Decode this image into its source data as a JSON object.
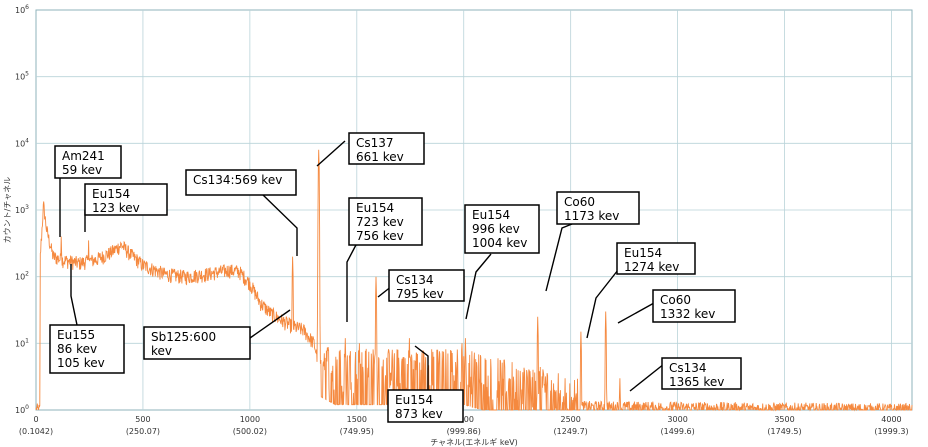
{
  "chart_data": {
    "type": "line",
    "title": "",
    "xlabel": "チャネル(エネルギ keV)",
    "ylabel": "カウント/チャネル",
    "y_scale": "log",
    "ylim": [
      1,
      1000000
    ],
    "xlim": [
      0,
      4096
    ],
    "grid": true,
    "line_color": "#f5893f",
    "x_ticks": [
      {
        "channel": 0,
        "label": "0",
        "energy": "(0.1042)"
      },
      {
        "channel": 500,
        "label": "500",
        "energy": "(250.07)"
      },
      {
        "channel": 1000,
        "label": "1000",
        "energy": "(500.02)"
      },
      {
        "channel": 1500,
        "label": "1500",
        "energy": "(749.95)"
      },
      {
        "channel": 2000,
        "label": "2000",
        "energy": "(999.86)"
      },
      {
        "channel": 2500,
        "label": "2500",
        "energy": "(1249.7)"
      },
      {
        "channel": 3000,
        "label": "3000",
        "energy": "(1499.6)"
      },
      {
        "channel": 3500,
        "label": "3500",
        "energy": "(1749.5)"
      },
      {
        "channel": 4000,
        "label": "4000",
        "energy": "(1999.3)"
      }
    ],
    "y_ticks": [
      {
        "value": 1,
        "base": "10",
        "exp": "0"
      },
      {
        "value": 10,
        "base": "10",
        "exp": "1"
      },
      {
        "value": 100,
        "base": "10",
        "exp": "2"
      },
      {
        "value": 1000,
        "base": "10",
        "exp": "3"
      },
      {
        "value": 10000,
        "base": "10",
        "exp": "4"
      },
      {
        "value": 100000,
        "base": "10",
        "exp": "5"
      },
      {
        "value": 1000000,
        "base": "10",
        "exp": "6"
      }
    ],
    "continuum": [
      [
        20,
        200
      ],
      [
        35,
        1200
      ],
      [
        50,
        500
      ],
      [
        80,
        200
      ],
      [
        120,
        180
      ],
      [
        200,
        160
      ],
      [
        280,
        180
      ],
      [
        350,
        230
      ],
      [
        400,
        300
      ],
      [
        440,
        220
      ],
      [
        500,
        150
      ],
      [
        600,
        110
      ],
      [
        700,
        100
      ],
      [
        800,
        110
      ],
      [
        900,
        125
      ],
      [
        950,
        120
      ],
      [
        1000,
        80
      ],
      [
        1050,
        40
      ],
      [
        1100,
        28
      ],
      [
        1150,
        22
      ],
      [
        1200,
        18
      ],
      [
        1250,
        16
      ],
      [
        1300,
        10
      ],
      [
        1330,
        4
      ],
      [
        1400,
        3
      ],
      [
        1600,
        3
      ],
      [
        1800,
        3
      ],
      [
        2000,
        3
      ],
      [
        2200,
        2
      ],
      [
        2400,
        1.5
      ],
      [
        2500,
        1.1
      ],
      [
        4096,
        1
      ]
    ],
    "peaks": [
      {
        "channel": 118,
        "counts": 400
      },
      {
        "channel": 246,
        "counts": 350
      },
      {
        "channel": 1137,
        "counts": 20
      },
      {
        "channel": 1200,
        "counts": 200
      },
      {
        "channel": 1322,
        "counts": 8000
      },
      {
        "channel": 1446,
        "counts": 12
      },
      {
        "channel": 1512,
        "counts": 10
      },
      {
        "channel": 1590,
        "counts": 100
      },
      {
        "channel": 1746,
        "counts": 12
      },
      {
        "channel": 1992,
        "counts": 10
      },
      {
        "channel": 2008,
        "counts": 12
      },
      {
        "channel": 2346,
        "counts": 25
      },
      {
        "channel": 2548,
        "counts": 15
      },
      {
        "channel": 2664,
        "counts": 30
      },
      {
        "channel": 2730,
        "counts": 3
      }
    ],
    "annotations": [
      {
        "lines": [
          "Am241",
          "59 kev"
        ]
      },
      {
        "lines": [
          "Eu154",
          "123 kev"
        ]
      },
      {
        "lines": [
          "Cs134:569 kev"
        ]
      },
      {
        "lines": [
          "Cs137",
          "661 kev"
        ]
      },
      {
        "lines": [
          "Eu154",
          "723 kev",
          "756 kev"
        ]
      },
      {
        "lines": [
          "Eu154",
          "996 kev",
          "1004 kev"
        ]
      },
      {
        "lines": [
          "Co60",
          "1173 kev"
        ]
      },
      {
        "lines": [
          "Cs134",
          "795 kev"
        ]
      },
      {
        "lines": [
          "Eu154",
          "1274 kev"
        ]
      },
      {
        "lines": [
          "Co60",
          "1332 kev"
        ]
      },
      {
        "lines": [
          "Eu155",
          "86 kev",
          "105 kev"
        ]
      },
      {
        "lines": [
          "Sb125:600",
          "kev"
        ]
      },
      {
        "lines": [
          "Cs134",
          "1365 kev"
        ]
      },
      {
        "lines": [
          "Eu154",
          "873 kev"
        ]
      }
    ]
  }
}
